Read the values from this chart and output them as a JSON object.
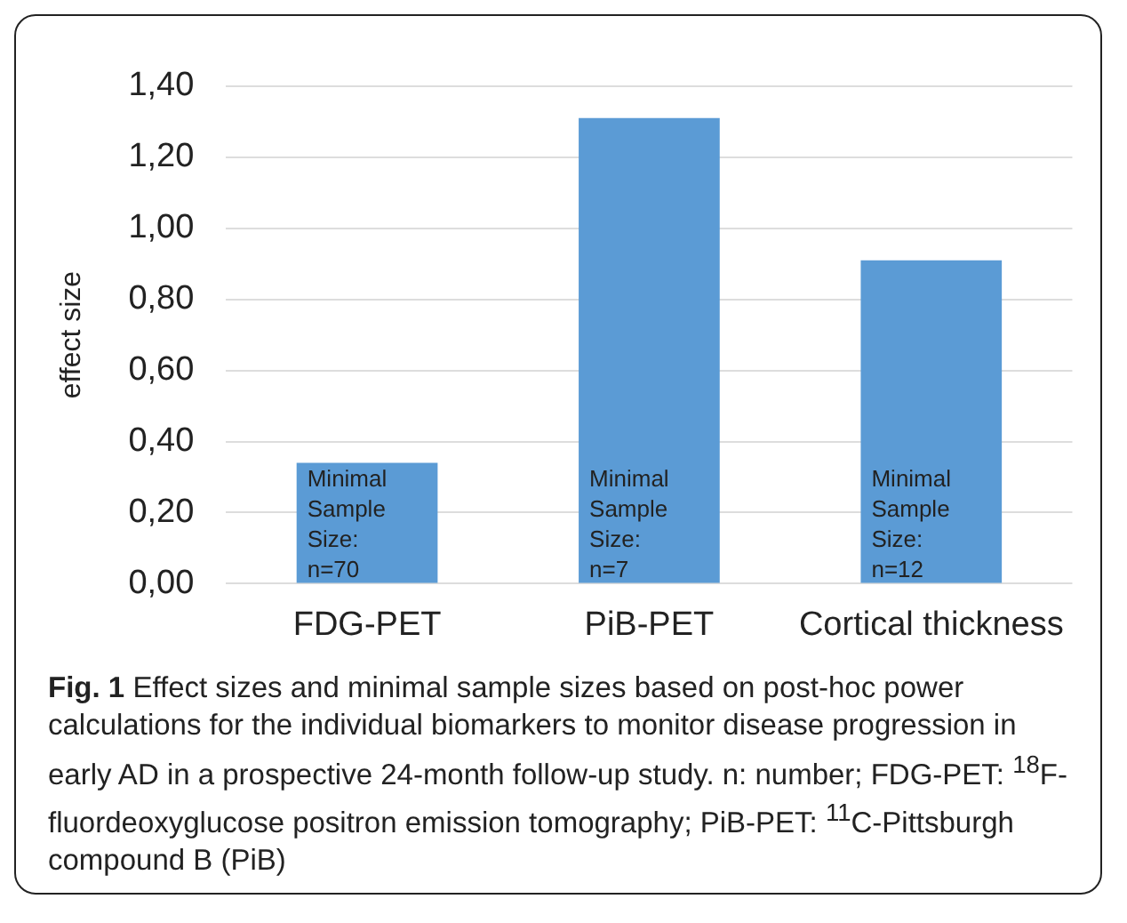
{
  "chart_data": {
    "type": "bar",
    "title": "Fig. 1",
    "subtitle": "Effect sizes and minimal sample sizes based on post-hoc power calculations for the individual biomarkers to monitor disease progression in early AD in a prospective 24-month follow-up study. n: number; FDG-PET: $^{18}$F-fluordeoxyglucose positron emission tomography; PiB-PET: $^{11}$C-Pittsburgh compound B (PiB)",
    "ylabel": "effect size",
    "categories": [
      "FDG-PET",
      "PiB-PET",
      "Cortical thickness"
    ],
    "values": [
      0.34,
      1.31,
      0.91
    ],
    "color": "#5b9bd5",
    "ylim": [
      0,
      1.4
    ],
    "yticks": [
      {
        "value": 0,
        "label": "0,00"
      },
      {
        "value": 0.2,
        "label": "0,20"
      },
      {
        "value": 0.4,
        "label": "0,40"
      },
      {
        "value": 0.6,
        "label": "0,60"
      },
      {
        "value": 0.8,
        "label": "0,80"
      },
      {
        "value": 1.0,
        "label": "1,00"
      },
      {
        "value": 1.2,
        "label": "1,20"
      },
      {
        "value": 1.4,
        "label": "1,40"
      }
    ],
    "grid": "y",
    "annotations": [
      {
        "text": "Minimal Sample Size: n=70",
        "x": "FDG-PET",
        "y": 0
      },
      {
        "text": "Minimal Sample Size: n=7",
        "x": "PiB-PET",
        "y": 0
      },
      {
        "text": "Minimal Sample Size: n=12",
        "x": "Cortical thickness",
        "y": 0
      }
    ]
  }
}
